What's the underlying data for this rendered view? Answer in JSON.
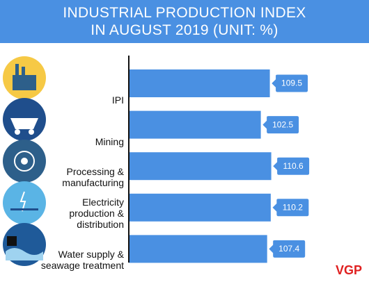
{
  "chart_data": {
    "type": "hbar",
    "title": "INDUSTRIAL PRODUCTION INDEX IN AUGUST 2019 (UNIT: %)",
    "categories": [
      "IPI",
      "Mining",
      "Processing & manufacturing",
      "Electricity production & distribution",
      "Water supply & seawage treatment"
    ],
    "values": [
      109.5,
      102.5,
      110.6,
      110.2,
      107.4
    ],
    "color": "#4a90e2",
    "xlim": [
      0,
      140
    ]
  },
  "logo": "VGP"
}
